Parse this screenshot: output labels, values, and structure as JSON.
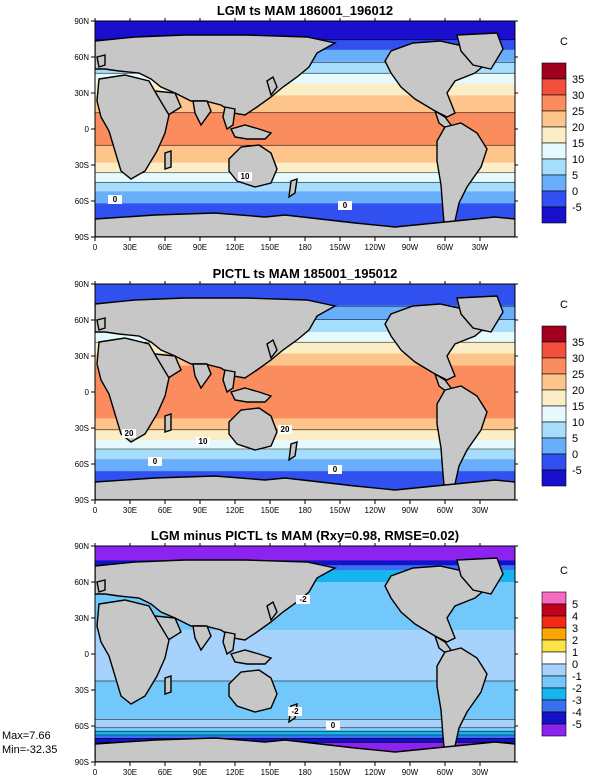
{
  "chart_data": [
    {
      "type": "heatmap",
      "title": "LGM ts MAM 186001_196012",
      "units": "C",
      "x_ticks": [
        "0",
        "30E",
        "60E",
        "90E",
        "120E",
        "150E",
        "180",
        "150W",
        "120W",
        "90W",
        "60W",
        "30W"
      ],
      "y_ticks": [
        "90N",
        "60N",
        "30N",
        "0",
        "30S",
        "60S",
        "90S"
      ],
      "levels": [
        -5,
        0,
        5,
        10,
        15,
        20,
        25,
        30,
        35
      ],
      "colorbar_labels": [
        "35",
        "30",
        "25",
        "20",
        "15",
        "10",
        "5",
        "0",
        "-5"
      ],
      "colors": [
        "#1a0fcf",
        "#3050f0",
        "#69aefa",
        "#a6dcfc",
        "#e6fafd",
        "#fbeec6",
        "#fdc58c",
        "#fb8c5e",
        "#f34f3d",
        "#a1001e"
      ],
      "contour_labels": [
        "10",
        "0",
        "0"
      ],
      "lat_bands": [
        {
          "lat": 80,
          "value": -8
        },
        {
          "lat": 65,
          "value": 0
        },
        {
          "lat": 50,
          "value": 8
        },
        {
          "lat": 40,
          "value": 14
        },
        {
          "lat": 30,
          "value": 19
        },
        {
          "lat": 20,
          "value": 24
        },
        {
          "lat": 0,
          "value": 27
        },
        {
          "lat": -20,
          "value": 24
        },
        {
          "lat": -30,
          "value": 19
        },
        {
          "lat": -40,
          "value": 13
        },
        {
          "lat": -50,
          "value": 6
        },
        {
          "lat": -60,
          "value": 1
        },
        {
          "lat": -70,
          "value": -4
        }
      ]
    },
    {
      "type": "heatmap",
      "title": "PICTL ts MAM 185001_195012",
      "units": "C",
      "x_ticks": [
        "0",
        "30E",
        "60E",
        "90E",
        "120E",
        "150E",
        "180",
        "150W",
        "120W",
        "90W",
        "60W",
        "30W"
      ],
      "y_ticks": [
        "90N",
        "60N",
        "30N",
        "0",
        "30S",
        "60S",
        "90S"
      ],
      "levels": [
        -5,
        0,
        5,
        10,
        15,
        20,
        25,
        30,
        35
      ],
      "colorbar_labels": [
        "35",
        "30",
        "25",
        "20",
        "15",
        "10",
        "5",
        "0",
        "-5"
      ],
      "colors": [
        "#1a0fcf",
        "#3050f0",
        "#69aefa",
        "#a6dcfc",
        "#e6fafd",
        "#fbeec6",
        "#fdc58c",
        "#fb8c5e",
        "#f34f3d",
        "#a1001e"
      ],
      "contour_labels": [
        "20",
        "20",
        "10",
        "0",
        "0"
      ],
      "lat_bands": [
        {
          "lat": 80,
          "value": -4
        },
        {
          "lat": 65,
          "value": 3
        },
        {
          "lat": 50,
          "value": 10
        },
        {
          "lat": 40,
          "value": 16
        },
        {
          "lat": 30,
          "value": 21
        },
        {
          "lat": 20,
          "value": 26
        },
        {
          "lat": 0,
          "value": 28
        },
        {
          "lat": -20,
          "value": 26
        },
        {
          "lat": -30,
          "value": 21
        },
        {
          "lat": -40,
          "value": 15
        },
        {
          "lat": -50,
          "value": 8
        },
        {
          "lat": -60,
          "value": 2
        },
        {
          "lat": -70,
          "value": -2
        }
      ]
    },
    {
      "type": "heatmap",
      "title": "LGM minus PICTL ts MAM (Rxy=0.98, RMSE=0.02)",
      "units": "C",
      "x_ticks": [
        "0",
        "30E",
        "60E",
        "90E",
        "120E",
        "150E",
        "180",
        "150W",
        "120W",
        "90W",
        "60W",
        "30W"
      ],
      "y_ticks": [
        "90N",
        "60N",
        "30N",
        "0",
        "30S",
        "60S",
        "90S"
      ],
      "levels": [
        -5,
        -4,
        -3,
        -2,
        -1,
        0,
        1,
        2,
        3,
        4,
        5
      ],
      "colorbar_labels": [
        "5",
        "4",
        "3",
        "2",
        "1",
        "0",
        "-1",
        "-2",
        "-3",
        "-4",
        "-5"
      ],
      "colors": [
        "#8c23ef",
        "#1212c8",
        "#3a6ff0",
        "#17b4f0",
        "#72c8fa",
        "#a7d2fc",
        "#ffffff",
        "#fde24a",
        "#fca404",
        "#f02a16",
        "#c0001c",
        "#f56bc0"
      ],
      "contour_labels": [
        "-2",
        "-2",
        "0"
      ],
      "max_text": "Max=7.66",
      "min_text": "Min=-32.35",
      "lat_bands": [
        {
          "lat": 80,
          "value": -5.5
        },
        {
          "lat": 70,
          "value": -3
        },
        {
          "lat": 55,
          "value": -1.5
        },
        {
          "lat": 40,
          "value": -1.2
        },
        {
          "lat": 20,
          "value": -1
        },
        {
          "lat": 5,
          "value": -0.6
        },
        {
          "lat": -15,
          "value": -0.8
        },
        {
          "lat": -30,
          "value": -1.2
        },
        {
          "lat": -45,
          "value": -1.8
        },
        {
          "lat": -60,
          "value": -0.5
        },
        {
          "lat": -75,
          "value": -5.5
        }
      ]
    }
  ]
}
